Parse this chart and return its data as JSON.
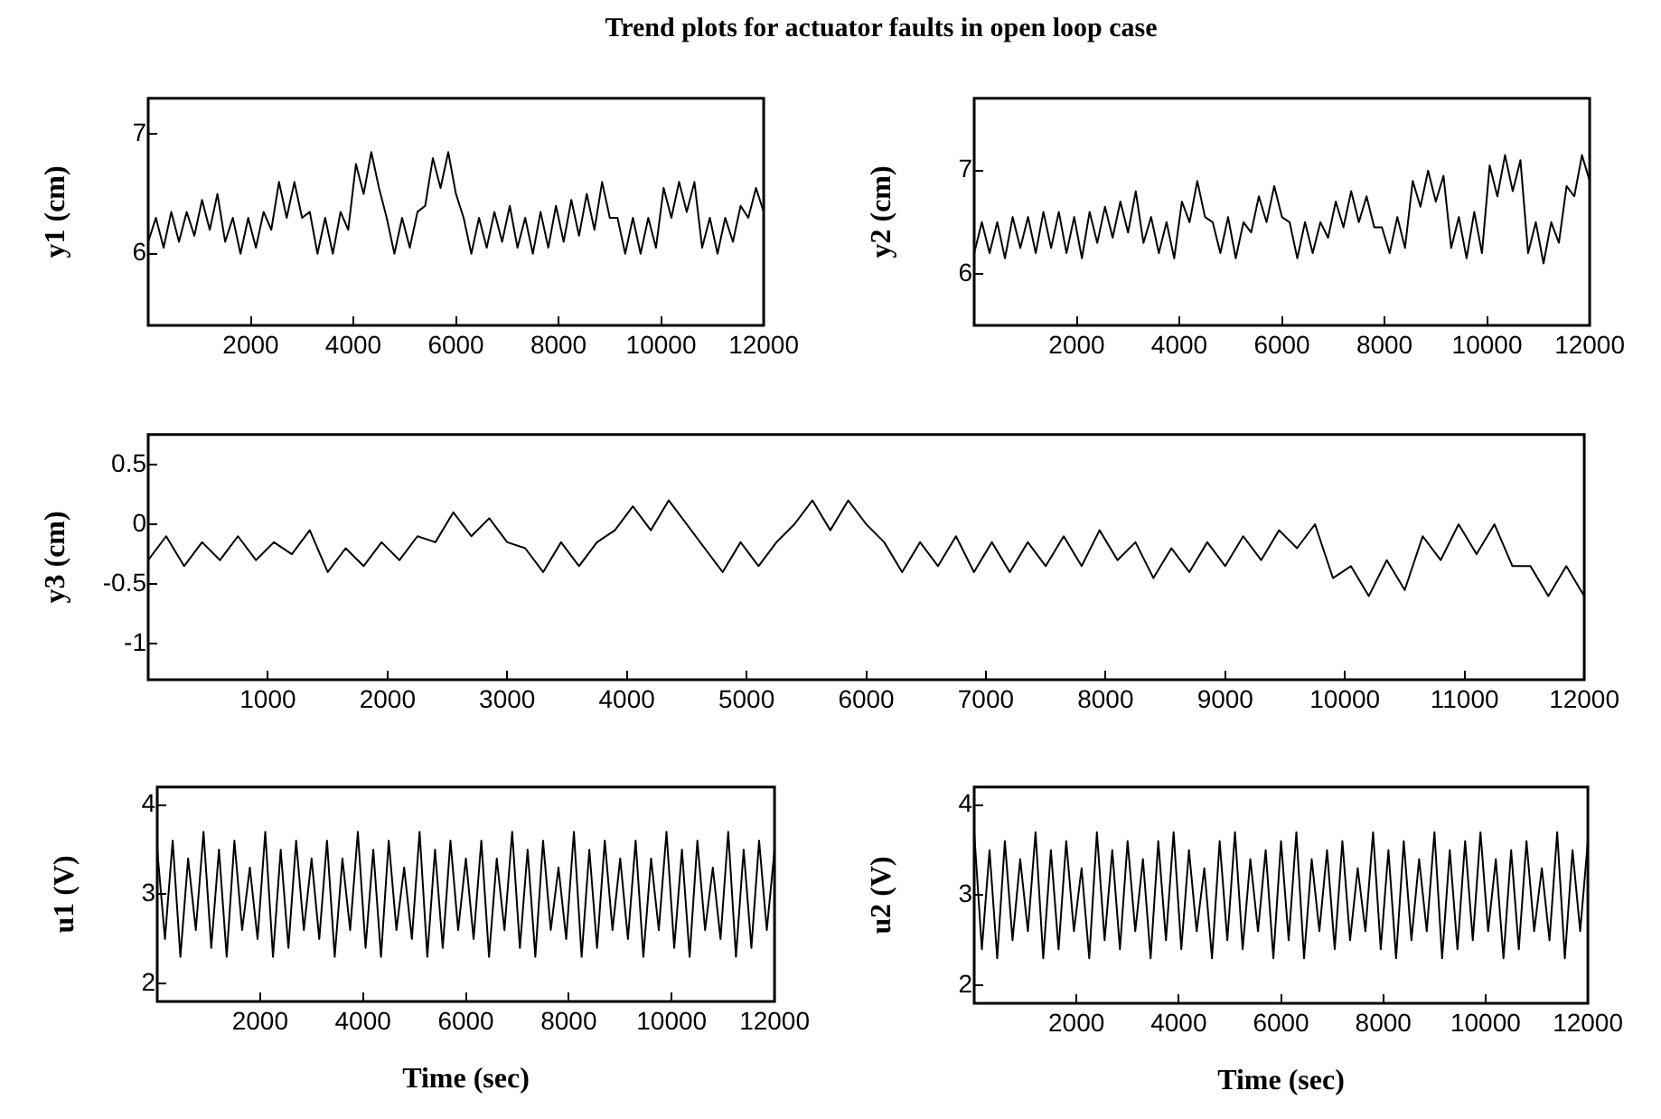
{
  "chart_data": [
    {
      "type": "line",
      "title": "Trend plots for actuator faults in open loop case",
      "ylabel": "y1 (cm)",
      "marker": "none",
      "line_style": "solid",
      "xlim": [
        0,
        12000
      ],
      "ylim": [
        5.4,
        7.3
      ],
      "xticks": [
        2000,
        4000,
        6000,
        8000,
        10000,
        12000
      ],
      "yticks": [
        6,
        7
      ],
      "x": [
        0,
        150,
        300,
        450,
        600,
        750,
        900,
        1050,
        1200,
        1350,
        1500,
        1650,
        1800,
        1950,
        2100,
        2250,
        2400,
        2550,
        2700,
        2850,
        3000,
        3150,
        3300,
        3450,
        3600,
        3750,
        3900,
        4050,
        4200,
        4350,
        4500,
        4650,
        4800,
        4950,
        5100,
        5250,
        5400,
        5550,
        5700,
        5850,
        6000,
        6150,
        6300,
        6450,
        6600,
        6750,
        6900,
        7050,
        7200,
        7350,
        7500,
        7650,
        7800,
        7950,
        8100,
        8250,
        8400,
        8550,
        8700,
        8850,
        9000,
        9150,
        9300,
        9450,
        9600,
        9750,
        9900,
        10050,
        10200,
        10350,
        10500,
        10650,
        10800,
        10950,
        11100,
        11250,
        11400,
        11550,
        11700,
        11850,
        12000
      ],
      "series": [
        {
          "color": "#000000",
          "values": [
            6.1,
            6.3,
            6.05,
            6.35,
            6.1,
            6.35,
            6.15,
            6.45,
            6.2,
            6.5,
            6.1,
            6.3,
            6.0,
            6.3,
            6.05,
            6.35,
            6.2,
            6.6,
            6.3,
            6.6,
            6.3,
            6.35,
            6.0,
            6.3,
            6.0,
            6.35,
            6.2,
            6.75,
            6.5,
            6.85,
            6.55,
            6.3,
            6.0,
            6.3,
            6.05,
            6.35,
            6.4,
            6.8,
            6.55,
            6.85,
            6.5,
            6.3,
            6.0,
            6.3,
            6.05,
            6.35,
            6.1,
            6.4,
            6.05,
            6.3,
            6.0,
            6.35,
            6.05,
            6.4,
            6.1,
            6.45,
            6.15,
            6.5,
            6.2,
            6.6,
            6.3,
            6.3,
            6.0,
            6.3,
            6.0,
            6.3,
            6.05,
            6.55,
            6.3,
            6.6,
            6.35,
            6.6,
            6.05,
            6.3,
            6.0,
            6.3,
            6.1,
            6.4,
            6.3,
            6.55,
            6.35
          ]
        }
      ]
    },
    {
      "type": "line",
      "ylabel": "y2 (cm)",
      "marker": "none",
      "line_style": "solid",
      "xlim": [
        0,
        12000
      ],
      "ylim": [
        5.5,
        7.7
      ],
      "xticks": [
        2000,
        4000,
        6000,
        8000,
        10000,
        12000
      ],
      "yticks": [
        6,
        7
      ],
      "x": [
        0,
        150,
        300,
        450,
        600,
        750,
        900,
        1050,
        1200,
        1350,
        1500,
        1650,
        1800,
        1950,
        2100,
        2250,
        2400,
        2550,
        2700,
        2850,
        3000,
        3150,
        3300,
        3450,
        3600,
        3750,
        3900,
        4050,
        4200,
        4350,
        4500,
        4650,
        4800,
        4950,
        5100,
        5250,
        5400,
        5550,
        5700,
        5850,
        6000,
        6150,
        6300,
        6450,
        6600,
        6750,
        6900,
        7050,
        7200,
        7350,
        7500,
        7650,
        7800,
        7950,
        8100,
        8250,
        8400,
        8550,
        8700,
        8850,
        9000,
        9150,
        9300,
        9450,
        9600,
        9750,
        9900,
        10050,
        10200,
        10350,
        10500,
        10650,
        10800,
        10950,
        11100,
        11250,
        11400,
        11550,
        11700,
        11850,
        12000
      ],
      "series": [
        {
          "color": "#000000",
          "values": [
            6.2,
            6.5,
            6.2,
            6.5,
            6.15,
            6.55,
            6.25,
            6.55,
            6.2,
            6.6,
            6.25,
            6.6,
            6.2,
            6.55,
            6.15,
            6.6,
            6.3,
            6.65,
            6.35,
            6.7,
            6.4,
            6.8,
            6.3,
            6.55,
            6.2,
            6.5,
            6.15,
            6.7,
            6.5,
            6.9,
            6.55,
            6.5,
            6.2,
            6.55,
            6.15,
            6.5,
            6.4,
            6.75,
            6.5,
            6.85,
            6.55,
            6.5,
            6.15,
            6.5,
            6.2,
            6.5,
            6.35,
            6.7,
            6.45,
            6.8,
            6.5,
            6.75,
            6.45,
            6.45,
            6.2,
            6.55,
            6.25,
            6.9,
            6.65,
            7.0,
            6.7,
            6.95,
            6.25,
            6.55,
            6.15,
            6.6,
            6.2,
            7.05,
            6.75,
            7.15,
            6.8,
            7.1,
            6.2,
            6.5,
            6.1,
            6.5,
            6.3,
            6.85,
            6.75,
            7.15,
            6.9
          ]
        }
      ]
    },
    {
      "type": "line",
      "ylabel": "y3 (cm)",
      "marker": "none",
      "line_style": "solid",
      "xlim": [
        0,
        12000
      ],
      "ylim": [
        -1.3,
        0.75
      ],
      "xticks": [
        1000,
        2000,
        3000,
        4000,
        5000,
        6000,
        7000,
        8000,
        9000,
        10000,
        11000,
        12000
      ],
      "yticks": [
        -1,
        -0.5,
        0,
        0.5
      ],
      "x": [
        0,
        150,
        300,
        450,
        600,
        750,
        900,
        1050,
        1200,
        1350,
        1500,
        1650,
        1800,
        1950,
        2100,
        2250,
        2400,
        2550,
        2700,
        2850,
        3000,
        3150,
        3300,
        3450,
        3600,
        3750,
        3900,
        4050,
        4200,
        4350,
        4500,
        4650,
        4800,
        4950,
        5100,
        5250,
        5400,
        5550,
        5700,
        5850,
        6000,
        6150,
        6300,
        6450,
        6600,
        6750,
        6900,
        7050,
        7200,
        7350,
        7500,
        7650,
        7800,
        7950,
        8100,
        8250,
        8400,
        8550,
        8700,
        8850,
        9000,
        9150,
        9300,
        9450,
        9600,
        9750,
        9900,
        10050,
        10200,
        10350,
        10500,
        10650,
        10800,
        10950,
        11100,
        11250,
        11400,
        11550,
        11700,
        11850,
        12000
      ],
      "series": [
        {
          "color": "#000000",
          "values": [
            -0.3,
            -0.1,
            -0.35,
            -0.15,
            -0.3,
            -0.1,
            -0.3,
            -0.15,
            -0.25,
            -0.05,
            -0.4,
            -0.2,
            -0.35,
            -0.15,
            -0.3,
            -0.1,
            -0.15,
            0.1,
            -0.1,
            0.05,
            -0.15,
            -0.2,
            -0.4,
            -0.15,
            -0.35,
            -0.15,
            -0.05,
            0.15,
            -0.05,
            0.2,
            0.0,
            -0.2,
            -0.4,
            -0.15,
            -0.35,
            -0.15,
            0.0,
            0.2,
            -0.05,
            0.2,
            0.0,
            -0.15,
            -0.4,
            -0.15,
            -0.35,
            -0.1,
            -0.4,
            -0.15,
            -0.4,
            -0.15,
            -0.35,
            -0.1,
            -0.35,
            -0.05,
            -0.3,
            -0.15,
            -0.45,
            -0.2,
            -0.4,
            -0.15,
            -0.35,
            -0.1,
            -0.3,
            -0.05,
            -0.2,
            0.0,
            -0.45,
            -0.35,
            -0.6,
            -0.3,
            -0.55,
            -0.1,
            -0.3,
            0.0,
            -0.25,
            0.0,
            -0.35,
            -0.35,
            -0.6,
            -0.35,
            -0.6
          ]
        }
      ]
    },
    {
      "type": "line",
      "ylabel": "u1 (V)",
      "xlabel": "Time (sec)",
      "marker": "none",
      "line_style": "solid",
      "xlim": [
        0,
        12000
      ],
      "ylim": [
        1.8,
        4.2
      ],
      "xticks": [
        2000,
        4000,
        6000,
        8000,
        10000,
        12000
      ],
      "yticks": [
        2,
        3,
        4
      ],
      "x": [
        0,
        150,
        300,
        450,
        600,
        750,
        900,
        1050,
        1200,
        1350,
        1500,
        1650,
        1800,
        1950,
        2100,
        2250,
        2400,
        2550,
        2700,
        2850,
        3000,
        3150,
        3300,
        3450,
        3600,
        3750,
        3900,
        4050,
        4200,
        4350,
        4500,
        4650,
        4800,
        4950,
        5100,
        5250,
        5400,
        5550,
        5700,
        5850,
        6000,
        6150,
        6300,
        6450,
        6600,
        6750,
        6900,
        7050,
        7200,
        7350,
        7500,
        7650,
        7800,
        7950,
        8100,
        8250,
        8400,
        8550,
        8700,
        8850,
        9000,
        9150,
        9300,
        9450,
        9600,
        9750,
        9900,
        10050,
        10200,
        10350,
        10500,
        10650,
        10800,
        10950,
        11100,
        11250,
        11400,
        11550,
        11700,
        11850,
        12000
      ],
      "series": [
        {
          "color": "#000000",
          "values": [
            3.5,
            2.5,
            3.6,
            2.3,
            3.4,
            2.6,
            3.7,
            2.4,
            3.5,
            2.3,
            3.6,
            2.6,
            3.3,
            2.5,
            3.7,
            2.3,
            3.5,
            2.4,
            3.6,
            2.6,
            3.4,
            2.5,
            3.6,
            2.3,
            3.4,
            2.6,
            3.7,
            2.4,
            3.5,
            2.3,
            3.6,
            2.6,
            3.3,
            2.5,
            3.7,
            2.3,
            3.5,
            2.4,
            3.6,
            2.6,
            3.4,
            2.5,
            3.6,
            2.3,
            3.4,
            2.6,
            3.7,
            2.4,
            3.5,
            2.3,
            3.6,
            2.6,
            3.3,
            2.5,
            3.7,
            2.3,
            3.5,
            2.4,
            3.6,
            2.6,
            3.4,
            2.5,
            3.6,
            2.3,
            3.4,
            2.6,
            3.7,
            2.4,
            3.5,
            2.3,
            3.6,
            2.6,
            3.3,
            2.5,
            3.7,
            2.3,
            3.5,
            2.4,
            3.6,
            2.6,
            3.5
          ]
        }
      ]
    },
    {
      "type": "line",
      "ylabel": "u2 (V)",
      "xlabel": "Time (sec)",
      "marker": "none",
      "line_style": "solid",
      "xlim": [
        0,
        12000
      ],
      "ylim": [
        1.8,
        4.2
      ],
      "xticks": [
        2000,
        4000,
        6000,
        8000,
        10000,
        12000
      ],
      "yticks": [
        2,
        3,
        4
      ],
      "x": [
        0,
        150,
        300,
        450,
        600,
        750,
        900,
        1050,
        1200,
        1350,
        1500,
        1650,
        1800,
        1950,
        2100,
        2250,
        2400,
        2550,
        2700,
        2850,
        3000,
        3150,
        3300,
        3450,
        3600,
        3750,
        3900,
        4050,
        4200,
        4350,
        4500,
        4650,
        4800,
        4950,
        5100,
        5250,
        5400,
        5550,
        5700,
        5850,
        6000,
        6150,
        6300,
        6450,
        6600,
        6750,
        6900,
        7050,
        7200,
        7350,
        7500,
        7650,
        7800,
        7950,
        8100,
        8250,
        8400,
        8550,
        8700,
        8850,
        9000,
        9150,
        9300,
        9450,
        9600,
        9750,
        9900,
        10050,
        10200,
        10350,
        10500,
        10650,
        10800,
        10950,
        11100,
        11250,
        11400,
        11550,
        11700,
        11850,
        12000
      ],
      "series": [
        {
          "color": "#000000",
          "values": [
            3.7,
            2.4,
            3.5,
            2.3,
            3.6,
            2.5,
            3.4,
            2.6,
            3.7,
            2.3,
            3.5,
            2.4,
            3.6,
            2.6,
            3.3,
            2.3,
            3.7,
            2.5,
            3.5,
            2.4,
            3.6,
            2.6,
            3.4,
            2.3,
            3.6,
            2.5,
            3.7,
            2.4,
            3.5,
            2.6,
            3.3,
            2.3,
            3.6,
            2.5,
            3.7,
            2.4,
            3.4,
            2.6,
            3.5,
            2.3,
            3.6,
            2.5,
            3.7,
            2.3,
            3.4,
            2.6,
            3.5,
            2.4,
            3.6,
            2.5,
            3.3,
            2.6,
            3.7,
            2.4,
            3.5,
            2.3,
            3.6,
            2.5,
            3.4,
            2.6,
            3.7,
            2.3,
            3.5,
            2.4,
            3.6,
            2.5,
            3.7,
            2.6,
            3.4,
            2.3,
            3.5,
            2.4,
            3.6,
            2.6,
            3.3,
            2.5,
            3.7,
            2.3,
            3.5,
            2.6,
            3.6
          ]
        }
      ]
    }
  ]
}
